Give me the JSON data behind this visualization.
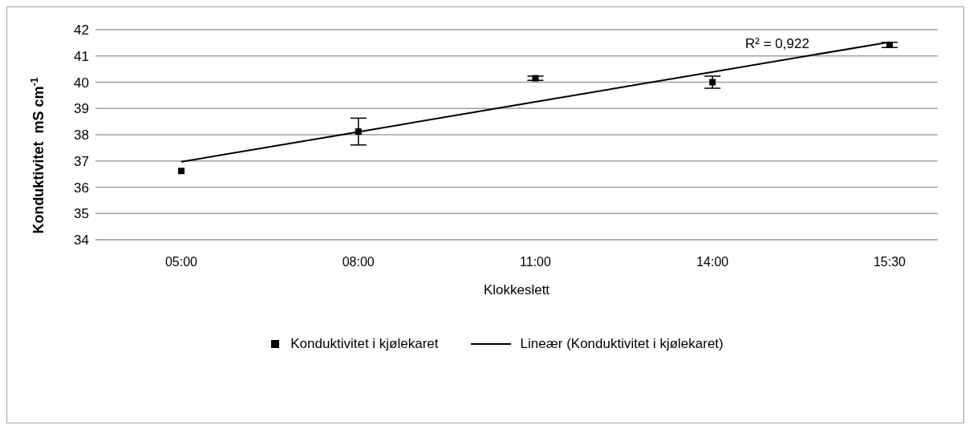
{
  "chart_data": {
    "type": "scatter",
    "xlabel": "Klokkeslett",
    "ylabel": "Konduktivitet  mS cm$^{-1}$",
    "categories": [
      "05:00",
      "08:00",
      "11:00",
      "14:00",
      "15:30"
    ],
    "ylim": [
      34,
      42
    ],
    "yticks": [
      34,
      35,
      36,
      37,
      38,
      39,
      40,
      41,
      42
    ],
    "grid": "y",
    "legend": "bottom",
    "annotations": [
      "R² = 0,922"
    ],
    "series": [
      {
        "name": "Konduktivitet i kjølekaret",
        "marker": "square",
        "color": "#000000",
        "values": [
          36.62,
          38.12,
          40.15,
          40.0,
          41.42
        ],
        "errors": [
          null,
          0.51,
          0.08,
          0.23,
          0.1
        ]
      },
      {
        "name": "Lineær (Konduktivitet i kjølekaret)",
        "type": "line",
        "color": "#000000",
        "line_style": "solid",
        "values": [
          36.97,
          38.11,
          39.25,
          40.39,
          41.53
        ]
      }
    ]
  }
}
